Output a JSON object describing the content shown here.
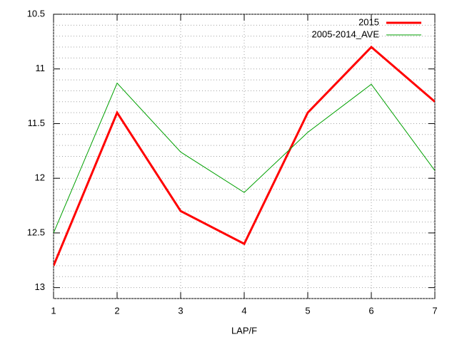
{
  "chart_data": {
    "type": "line",
    "xlabel": "LAP/F",
    "x": [
      1,
      2,
      3,
      4,
      5,
      6,
      7
    ],
    "series": [
      {
        "name": "2015",
        "color": "#ff0000",
        "values": [
          12.8,
          11.4,
          12.3,
          12.6,
          11.4,
          10.8,
          11.3
        ]
      },
      {
        "name": "2005-2014_AVE",
        "color": "#00a000",
        "values": [
          12.5,
          11.13,
          11.76,
          12.13,
          11.58,
          11.14,
          11.93
        ]
      }
    ],
    "xlim": [
      1,
      7
    ],
    "xticks": [
      1,
      2,
      3,
      4,
      5,
      6,
      7
    ],
    "ylim": [
      10.5,
      13.1
    ],
    "y_reversed": true,
    "yticks": [
      10.5,
      11,
      11.5,
      12,
      12.5,
      13
    ],
    "yminorticks": [
      10.6,
      10.7,
      10.8,
      10.9,
      11.1,
      11.2,
      11.3,
      11.4,
      11.6,
      11.7,
      11.8,
      11.9,
      12.1,
      12.2,
      12.3,
      12.4,
      12.6,
      12.7,
      12.8,
      12.9,
      13.1
    ],
    "grid": true,
    "legend": "top-right"
  }
}
